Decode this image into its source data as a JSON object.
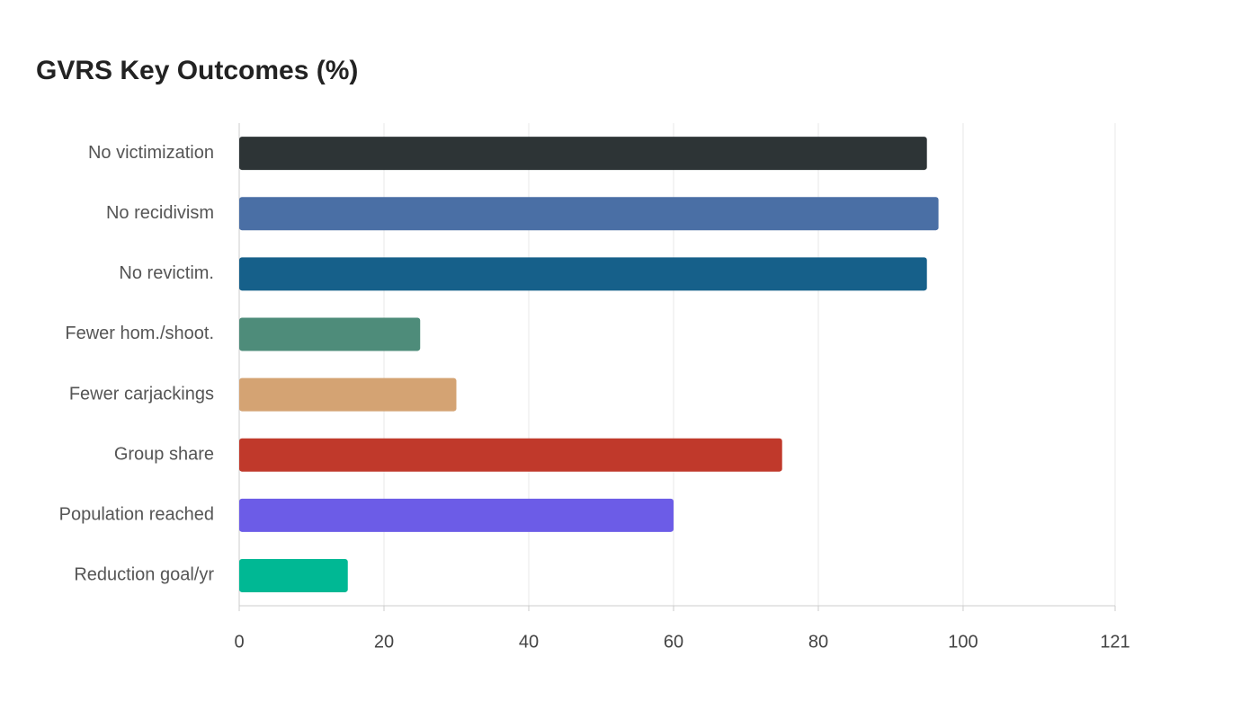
{
  "chart_data": {
    "type": "bar",
    "orientation": "horizontal",
    "title": "GVRS Key Outcomes (%)",
    "categories": [
      "No victimization",
      "No recidivism",
      "No revictim.",
      "Fewer hom./shoot.",
      "Fewer carjackings",
      "Group share",
      "Population reached",
      "Reduction goal/yr"
    ],
    "values": [
      95,
      96.6,
      95,
      25,
      30,
      75,
      60,
      15
    ],
    "colors": [
      "#2d3436",
      "#4a6fa5",
      "#16608a",
      "#4e8c7a",
      "#d4a373",
      "#c0392b",
      "#6c5ce7",
      "#00b894"
    ],
    "xlim": [
      0,
      121
    ],
    "xticks": [
      0,
      20,
      40,
      60,
      80,
      100,
      121
    ],
    "grid": true
  }
}
